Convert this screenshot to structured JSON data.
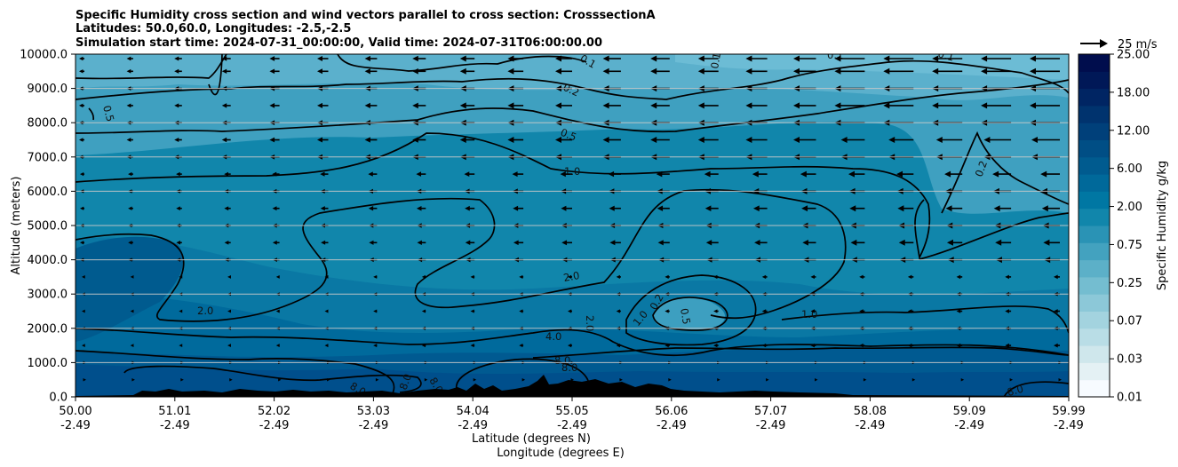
{
  "chart_data": {
    "type": "contourf",
    "title_lines": [
      "Specific Humidity cross section and wind vectors parallel to cross section: CrosssectionA",
      "Latitudes: 50.0,60.0, Longitudes: -2.5,-2.5",
      "Simulation start time: 2024-07-31_00:00:00, Valid time: 2024-07-31T06:00:00.00"
    ],
    "ylabel": "Altitude (meters)",
    "xlabel_lat": "Latitude (degrees N)",
    "xlabel_lon": "Longitude (degrees E)",
    "ylim": [
      0,
      10000
    ],
    "y_ticks": [
      "0.0",
      "1000.0",
      "2000.0",
      "3000.0",
      "4000.0",
      "5000.0",
      "6000.0",
      "7000.0",
      "8000.0",
      "9000.0",
      "10000.0"
    ],
    "x_ticks_lat": [
      "50.00",
      "51.01",
      "52.02",
      "53.03",
      "54.04",
      "55.05",
      "56.06",
      "57.07",
      "58.08",
      "59.09",
      "59.99"
    ],
    "x_ticks_lon": [
      "-2.49",
      "-2.49",
      "-2.49",
      "-2.49",
      "-2.49",
      "-2.49",
      "-2.49",
      "-2.49",
      "-2.49",
      "-2.49",
      "-2.49"
    ],
    "colorbar": {
      "label": "Specific Humidity g/kg",
      "tick_labels": [
        "0.01",
        "0.03",
        "0.07",
        "0.25",
        "0.75",
        "2.00",
        "6.00",
        "12.00",
        "18.00",
        "25.00"
      ],
      "colors": [
        "#f7fbff",
        "#e4f1f4",
        "#cfe7ec",
        "#b9dde6",
        "#a3d3df",
        "#8cc8d8",
        "#74bdd0",
        "#5cb0c8",
        "#43a2bf",
        "#2a93b5",
        "#1186ab",
        "#0077a3",
        "#00699a",
        "#005b8f",
        "#004e85",
        "#00407a",
        "#00336e",
        "#002563",
        "#001857",
        "#000d4d"
      ]
    },
    "wind_key_label": "25 m/s",
    "contour_labels": [
      "0.1",
      "0.1",
      "0.1",
      "0.1",
      "0.2",
      "0.5",
      "0.5",
      "1.0",
      "2.0",
      "2.0",
      "4.0",
      "8.0",
      "8.0",
      "8.0",
      "8.0",
      "8.0",
      "0.2",
      "1.0",
      "2.0",
      "1.0",
      "0.2",
      "0.5",
      "8.0"
    ]
  },
  "colors": {
    "deep": "#004f8c",
    "mid": "#0e80a9",
    "upper": "#3f9fbe",
    "top": "#5aaecb",
    "terrain": "#000000"
  }
}
